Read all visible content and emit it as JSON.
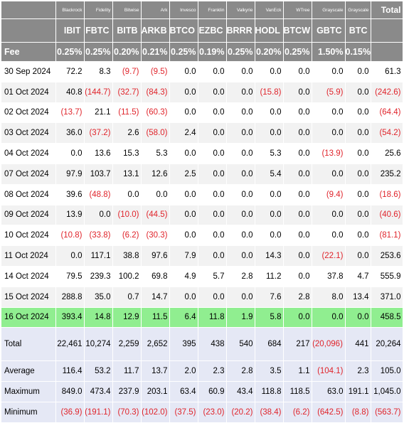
{
  "columns": [
    {
      "issuer": "Blackrock",
      "ticker": "IBIT",
      "fee": "0.25%"
    },
    {
      "issuer": "Fidelity",
      "ticker": "FBTC",
      "fee": "0.25%"
    },
    {
      "issuer": "Bitwise",
      "ticker": "BITB",
      "fee": "0.20%"
    },
    {
      "issuer": "Ark",
      "ticker": "ARKB",
      "fee": "0.21%"
    },
    {
      "issuer": "Invesco",
      "ticker": "BTCO",
      "fee": "0.25%"
    },
    {
      "issuer": "Franklin",
      "ticker": "EZBC",
      "fee": "0.19%"
    },
    {
      "issuer": "Valkyrie",
      "ticker": "BRRR",
      "fee": "0.25%"
    },
    {
      "issuer": "VanEck",
      "ticker": "HODL",
      "fee": "0.20%"
    },
    {
      "issuer": "WTree",
      "ticker": "BTCW",
      "fee": "0.25%"
    },
    {
      "issuer": "Grayscale",
      "ticker": "GBTC",
      "fee": "1.50%"
    },
    {
      "issuer": "Grayscale",
      "ticker": "BTC",
      "fee": "0.15%"
    }
  ],
  "total_header": "Total",
  "fee_label": "Fee",
  "rows": [
    {
      "date": "30 Sep 2024",
      "values": [
        "72.2",
        "8.3",
        "(9.7)",
        "(9.5)",
        "0.0",
        "0.0",
        "0.0",
        "0.0",
        "0.0",
        "0.0",
        "0.0"
      ],
      "total": "61.3"
    },
    {
      "date": "01 Oct 2024",
      "values": [
        "40.8",
        "(144.7)",
        "(32.7)",
        "(84.3)",
        "0.0",
        "0.0",
        "0.0",
        "(15.8)",
        "0.0",
        "(5.9)",
        "0.0"
      ],
      "total": "(242.6)"
    },
    {
      "date": "02 Oct 2024",
      "values": [
        "(13.7)",
        "21.1",
        "(11.5)",
        "(60.3)",
        "0.0",
        "0.0",
        "0.0",
        "0.0",
        "0.0",
        "0.0",
        "0.0"
      ],
      "total": "(64.4)"
    },
    {
      "date": "03 Oct 2024",
      "values": [
        "36.0",
        "(37.2)",
        "2.6",
        "(58.0)",
        "2.4",
        "0.0",
        "0.0",
        "0.0",
        "0.0",
        "0.0",
        "0.0"
      ],
      "total": "(54.2)"
    },
    {
      "date": "04 Oct 2024",
      "values": [
        "0.0",
        "13.6",
        "15.3",
        "5.3",
        "0.0",
        "0.0",
        "0.0",
        "5.3",
        "0.0",
        "(13.9)",
        "0.0"
      ],
      "total": "25.6"
    },
    {
      "date": "07 Oct 2024",
      "values": [
        "97.9",
        "103.7",
        "13.1",
        "12.6",
        "2.5",
        "0.0",
        "0.0",
        "5.4",
        "0.0",
        "0.0",
        "0.0"
      ],
      "total": "235.2"
    },
    {
      "date": "08 Oct 2024",
      "values": [
        "39.6",
        "(48.8)",
        "0.0",
        "0.0",
        "0.0",
        "0.0",
        "0.0",
        "0.0",
        "0.0",
        "(9.4)",
        "0.0"
      ],
      "total": "(18.6)"
    },
    {
      "date": "09 Oct 2024",
      "values": [
        "13.9",
        "0.0",
        "(10.0)",
        "(44.5)",
        "0.0",
        "0.0",
        "0.0",
        "0.0",
        "0.0",
        "0.0",
        "0.0"
      ],
      "total": "(40.6)"
    },
    {
      "date": "10 Oct 2024",
      "values": [
        "(10.8)",
        "(33.8)",
        "(6.2)",
        "(30.3)",
        "0.0",
        "0.0",
        "0.0",
        "0.0",
        "0.0",
        "0.0",
        "0.0"
      ],
      "total": "(81.1)"
    },
    {
      "date": "11 Oct 2024",
      "values": [
        "0.0",
        "117.1",
        "38.8",
        "97.6",
        "7.9",
        "0.0",
        "0.0",
        "14.3",
        "0.0",
        "(22.1)",
        "0.0"
      ],
      "total": "253.6"
    },
    {
      "date": "14 Oct 2024",
      "values": [
        "79.5",
        "239.3",
        "100.2",
        "69.8",
        "4.9",
        "5.7",
        "2.8",
        "11.2",
        "0.0",
        "37.8",
        "4.7"
      ],
      "total": "555.9"
    },
    {
      "date": "15 Oct 2024",
      "values": [
        "288.8",
        "35.0",
        "0.7",
        "14.7",
        "0.0",
        "0.0",
        "0.0",
        "7.6",
        "2.8",
        "8.0",
        "13.4"
      ],
      "total": "371.0"
    },
    {
      "date": "16 Oct 2024",
      "values": [
        "393.4",
        "14.8",
        "12.9",
        "11.5",
        "6.4",
        "11.8",
        "1.9",
        "5.8",
        "0.0",
        "0.0",
        "0.0"
      ],
      "total": "458.5",
      "highlight": true
    }
  ],
  "summary": [
    {
      "label": "Total",
      "values": [
        "22,461",
        "10,274",
        "2,259",
        "2,652",
        "395",
        "438",
        "540",
        "684",
        "217",
        "(20,096)",
        "441"
      ],
      "total": "20,264"
    },
    {
      "label": "Average",
      "values": [
        "116.4",
        "53.2",
        "11.7",
        "13.7",
        "2.0",
        "2.3",
        "2.8",
        "3.5",
        "1.1",
        "(104.1)",
        "2.3"
      ],
      "total": "105.0"
    },
    {
      "label": "Maximum",
      "values": [
        "849.0",
        "473.4",
        "237.9",
        "203.1",
        "63.4",
        "60.9",
        "43.4",
        "118.8",
        "118.5",
        "63.0",
        "191.1"
      ],
      "total": "1,045.0"
    },
    {
      "label": "Minimum",
      "values": [
        "(36.9)",
        "(191.1)",
        "(70.3)",
        "(102.0)",
        "(37.5)",
        "(23.0)",
        "(20.2)",
        "(38.4)",
        "(6.2)",
        "(642.5)",
        "(8.8)"
      ],
      "total": "(563.7)"
    }
  ],
  "colors": {
    "header_bg": "#8a8a8a",
    "negative": "#e0242b",
    "highlight": "#90ee90",
    "summary_bg": "#e5e8f5"
  }
}
